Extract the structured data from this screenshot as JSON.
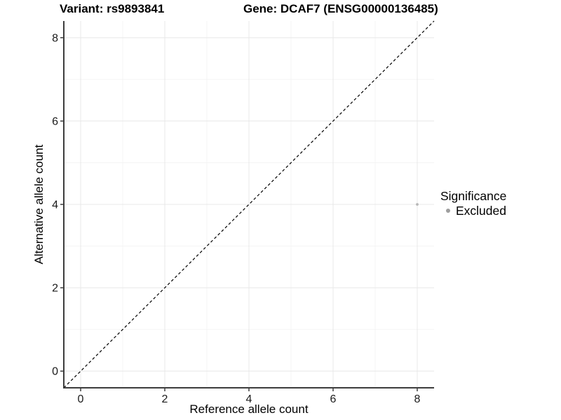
{
  "header": {
    "variant_title": "Variant: rs9893841",
    "gene_title": "Gene: DCAF7 (ENSG00000136485)"
  },
  "legend": {
    "title": "Significance",
    "items": [
      {
        "label": "Excluded",
        "color": "#9e9e9e"
      }
    ]
  },
  "chart_data": {
    "type": "scatter",
    "title": "Variant: rs9893841   Gene: DCAF7 (ENSG00000136485)",
    "xlabel": "Reference allele count",
    "ylabel": "Alternative allele count",
    "xlim": [
      -0.4,
      8.4
    ],
    "ylim": [
      -0.4,
      8.4
    ],
    "x_major_ticks": [
      0,
      2,
      4,
      6,
      8
    ],
    "x_minor_ticks": [
      1,
      3,
      5,
      7
    ],
    "y_major_ticks": [
      0,
      2,
      4,
      6,
      8
    ],
    "y_minor_ticks": [
      1,
      3,
      5,
      7
    ],
    "series": [
      {
        "name": "Excluded",
        "color": "#b7b7b7",
        "points": [
          {
            "x": 8,
            "y": 4
          }
        ]
      }
    ],
    "reference_line": {
      "type": "identity y=x",
      "style": "dashed",
      "color": "#000000",
      "x1": -0.4,
      "y1": -0.4,
      "x2": 8.4,
      "y2": 8.4
    },
    "grid": "major and minor gridlines, light gray, on white panel",
    "legend_position": "right"
  },
  "colors": {
    "background": "#ffffff",
    "grid_major": "#e8e8e8",
    "grid_minor": "#f4f4f4",
    "axis_line": "#3d3d3d",
    "tick_mark": "#3d3d3d",
    "tick_label": "#1a1a1a",
    "point": "#b7b7b7",
    "legend_key": "#9e9e9e"
  }
}
